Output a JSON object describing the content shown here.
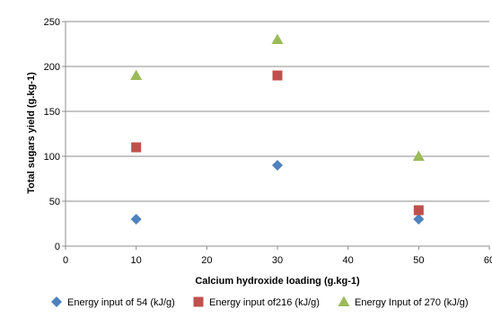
{
  "chart_data": {
    "type": "scatter",
    "title": "",
    "xlabel": "Calcium hydroxide loading (g.kg-1)",
    "ylabel": "Total sugars yield (g.kg-1)",
    "xlim": [
      0,
      60
    ],
    "ylim": [
      0,
      250
    ],
    "x_ticks": [
      "0",
      "10",
      "20",
      "30",
      "40",
      "50",
      "60"
    ],
    "y_ticks": [
      "0",
      "50",
      "100",
      "150",
      "200",
      "250"
    ],
    "grid": "horizontal",
    "legend_position": "bottom",
    "series": [
      {
        "name": "Energy input of 54 (kJ/g)",
        "marker": "diamond",
        "color": "#4f81bd",
        "x": [
          10,
          30,
          50
        ],
        "y": [
          30,
          90,
          30
        ]
      },
      {
        "name": "Energy input of216 (kJ/g)",
        "marker": "square",
        "color": "#c0504d",
        "x": [
          10,
          30,
          50
        ],
        "y": [
          110,
          190,
          40
        ]
      },
      {
        "name": "Energy Input of 270 (kJ/g)",
        "marker": "triangle",
        "color": "#9bbb59",
        "x": [
          10,
          30,
          50
        ],
        "y": [
          190,
          230,
          100
        ]
      }
    ]
  }
}
